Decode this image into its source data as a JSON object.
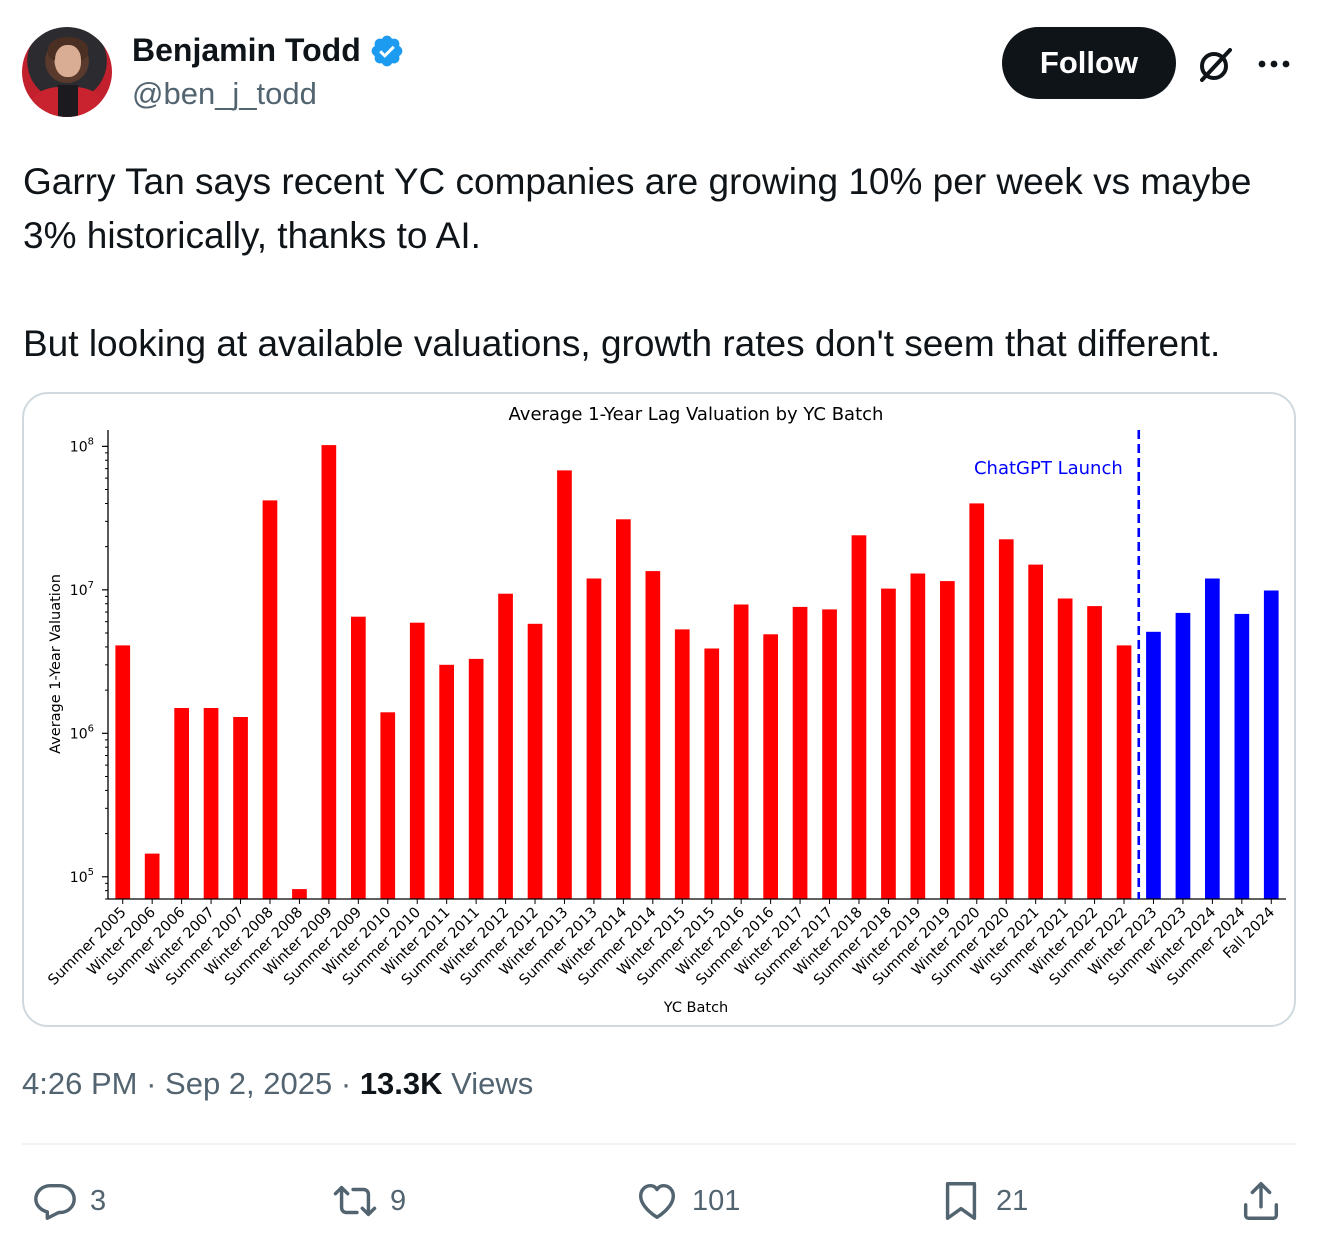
{
  "author": {
    "name": "Benjamin Todd",
    "handle": "@ben_j_todd",
    "verified": true
  },
  "header": {
    "follow_label": "Follow",
    "icons": [
      "grok-icon",
      "more-icon"
    ]
  },
  "tweet": {
    "paragraphs": [
      "Garry Tan says recent YC companies are growing 10% per week vs maybe",
      "3% historically, thanks to AI.",
      "But looking at available valuations, growth rates don't seem that different."
    ]
  },
  "meta": {
    "time": "4:26 PM",
    "separator": "·",
    "date": "Sep 2, 2025",
    "views_count": "13.3K",
    "views_label": "Views"
  },
  "actions": {
    "reply_count": "3",
    "retweet_count": "9",
    "like_count": "101",
    "bookmark_count": "21"
  },
  "colors": {
    "accent": "#1d9bf0",
    "pre_chatgpt": "#ff0000",
    "post_chatgpt": "#0000ff",
    "text_primary": "#0f1419",
    "text_secondary": "#536471"
  },
  "chart_data": {
    "type": "bar",
    "title": "Average 1-Year Lag Valuation by YC Batch",
    "xlabel": "YC Batch",
    "ylabel": "Average 1-Year Valuation",
    "yscale": "log",
    "ylim": [
      70000,
      130000000
    ],
    "yticks": [
      {
        "value": 100000,
        "base": "10",
        "exp": "5"
      },
      {
        "value": 1000000,
        "base": "10",
        "exp": "6"
      },
      {
        "value": 10000000,
        "base": "10",
        "exp": "7"
      },
      {
        "value": 100000000,
        "base": "10",
        "exp": "8"
      }
    ],
    "categories": [
      "Summer 2005",
      "Winter 2006",
      "Summer 2006",
      "Winter 2007",
      "Summer 2007",
      "Winter 2008",
      "Summer 2008",
      "Winter 2009",
      "Summer 2009",
      "Winter 2010",
      "Summer 2010",
      "Winter 2011",
      "Summer 2011",
      "Winter 2012",
      "Summer 2012",
      "Winter 2013",
      "Summer 2013",
      "Winter 2014",
      "Summer 2014",
      "Winter 2015",
      "Summer 2015",
      "Winter 2016",
      "Summer 2016",
      "Winter 2017",
      "Summer 2017",
      "Winter 2018",
      "Summer 2018",
      "Winter 2019",
      "Summer 2019",
      "Winter 2020",
      "Summer 2020",
      "Winter 2021",
      "Summer 2021",
      "Winter 2022",
      "Summer 2022",
      "Winter 2023",
      "Summer 2023",
      "Winter 2024",
      "Summer 2024",
      "Fall 2024"
    ],
    "values": [
      4100000,
      145000,
      1500000,
      1500000,
      1300000,
      42000000,
      82000,
      102000000,
      6500000,
      1400000,
      5900000,
      3000000,
      3300000,
      9400000,
      5800000,
      68000000,
      12000000,
      31000000,
      13500000,
      5300000,
      3900000,
      7900000,
      4900000,
      7600000,
      7300000,
      24000000,
      10200000,
      13000000,
      11500000,
      40000000,
      22500000,
      15000000,
      8700000,
      7700000,
      4100000,
      5100000,
      6900000,
      12000000,
      6800000,
      9900000
    ],
    "series_colors": {
      "before": "#ff0000",
      "after": "#0000ff"
    },
    "launch_index": 35,
    "annotation": {
      "text": "ChatGPT Launch",
      "color": "#0000ff",
      "style": "dashed vertical line"
    },
    "grid": false
  }
}
